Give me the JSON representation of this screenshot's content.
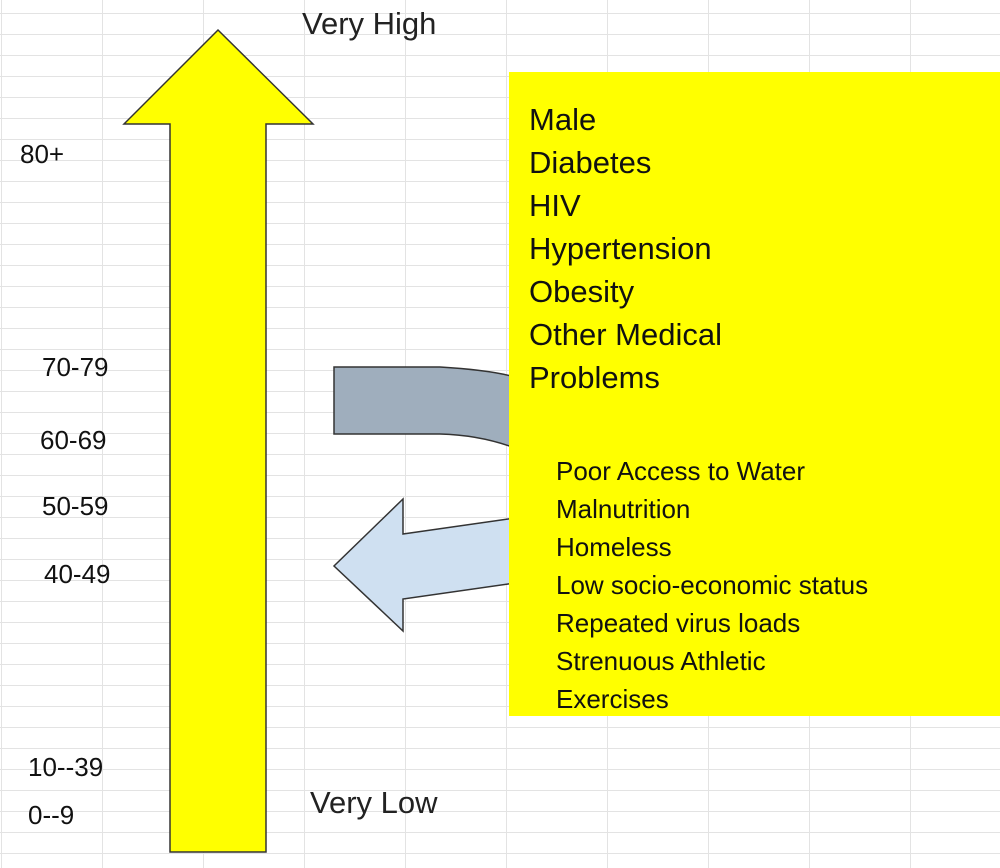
{
  "scale": {
    "top_label": "Very High",
    "bottom_label": "Very Low",
    "age_groups": [
      "80+",
      "70-79",
      "60-69",
      "50-59",
      "40-49",
      "10--39",
      "0--9"
    ]
  },
  "increasing_factors": [
    "Male",
    "Diabetes",
    "HIV",
    "Hypertension",
    "Obesity",
    "Other Medical",
    "Problems"
  ],
  "decreasing_factors": [
    "Poor Access to Water",
    "Malnutrition",
    "Homeless",
    "Low socio-economic status",
    "Repeated virus loads",
    "Strenuous Athletic",
    "Exercises"
  ],
  "colors": {
    "main_arrow": "#ffff00",
    "factor_box": "#ffff00",
    "upper_arrow": "#9faebd",
    "lower_arrow": "#cfe0f1",
    "grid": "#e3e3e3"
  }
}
